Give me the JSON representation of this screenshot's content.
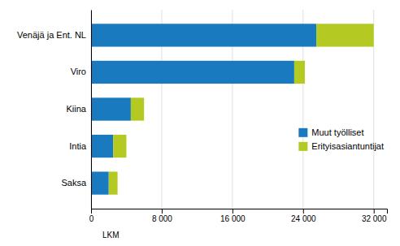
{
  "chart_data": {
    "type": "bar",
    "orientation": "horizontal",
    "stacked": true,
    "categories": [
      "Saksa",
      "Intia",
      "Kiina",
      "Viro",
      "Venäjä ja Ent. NL"
    ],
    "series": [
      {
        "name": "Muut työlliset",
        "color": "#1a7abf",
        "values": [
          2000,
          2500,
          4500,
          23000,
          25500
        ]
      },
      {
        "name": "Erityisasiantuntijat",
        "color": "#b5c923",
        "values": [
          1000,
          1500,
          1500,
          1200,
          6500
        ]
      }
    ],
    "x_label": "LKM",
    "xlim": [
      0,
      33500
    ],
    "xticks": [
      0,
      {
        "value": 8000,
        "label": "8 000"
      },
      {
        "value": 16000,
        "label": "16 000"
      },
      {
        "value": 24000,
        "label": "24 000"
      },
      {
        "value": 32000,
        "label": "32 000"
      }
    ],
    "grid": true,
    "legend": "right"
  }
}
